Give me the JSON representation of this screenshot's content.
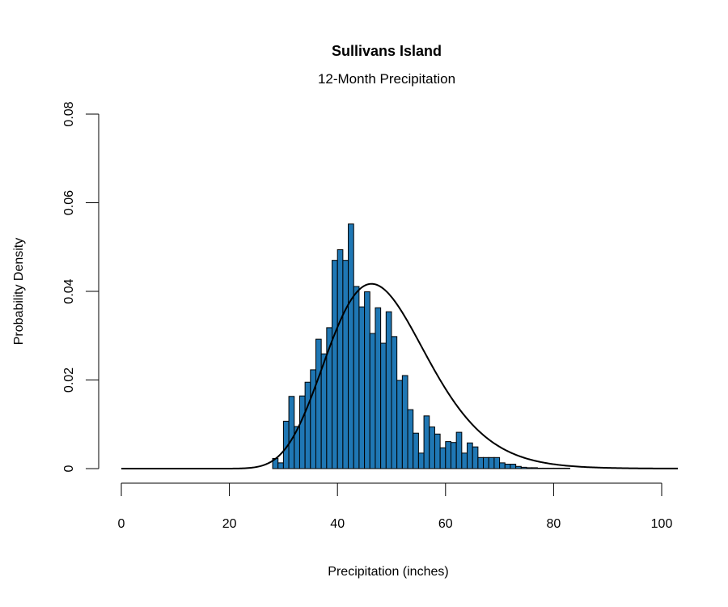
{
  "chart_data": {
    "type": "bar",
    "title": "Sullivans Island",
    "subtitle": "12-Month Precipitation",
    "xlabel": "Precipitation (inches)",
    "ylabel": "Probability Density",
    "xlim": [
      0,
      103
    ],
    "ylim": [
      0,
      0.08
    ],
    "x_ticks": [
      "0",
      "20",
      "40",
      "60",
      "80",
      "100"
    ],
    "y_ticks": [
      "0",
      "0.02",
      "0.04",
      "0.06",
      "0.08"
    ],
    "bin_width": 1,
    "bar_color": "#1f77b4",
    "histogram": {
      "bin_starts": [
        28,
        29,
        30,
        31,
        32,
        33,
        34,
        35,
        36,
        37,
        38,
        39,
        40,
        41,
        42,
        43,
        44,
        45,
        46,
        47,
        48,
        49,
        50,
        51,
        52,
        53,
        54,
        55,
        56,
        57,
        58,
        59,
        60,
        61,
        62,
        63,
        64,
        65,
        66,
        67,
        68,
        69,
        70,
        71,
        72,
        73,
        74,
        75,
        76,
        77,
        78,
        79,
        80,
        81,
        82
      ],
      "densities": [
        0.0023,
        0.0013,
        0.0107,
        0.0163,
        0.0095,
        0.0164,
        0.0195,
        0.0223,
        0.0292,
        0.0259,
        0.0318,
        0.047,
        0.0494,
        0.047,
        0.0552,
        0.0411,
        0.0365,
        0.0399,
        0.0305,
        0.0363,
        0.0283,
        0.0354,
        0.0298,
        0.0199,
        0.021,
        0.0133,
        0.008,
        0.0035,
        0.0119,
        0.0094,
        0.0078,
        0.0047,
        0.0061,
        0.0059,
        0.0082,
        0.0035,
        0.0058,
        0.0049,
        0.0025,
        0.0025,
        0.0025,
        0.0025,
        0.0013,
        0.001,
        0.001,
        0.0005,
        0.0003,
        0.0002,
        0.0002,
        0.0001,
        0.0001,
        0.0001,
        0.0001,
        0.0001,
        0.0001
      ]
    },
    "fitted_curve": {
      "type": "lognormal",
      "peak_x": 46.3,
      "peak_density": 0.0417
    }
  }
}
